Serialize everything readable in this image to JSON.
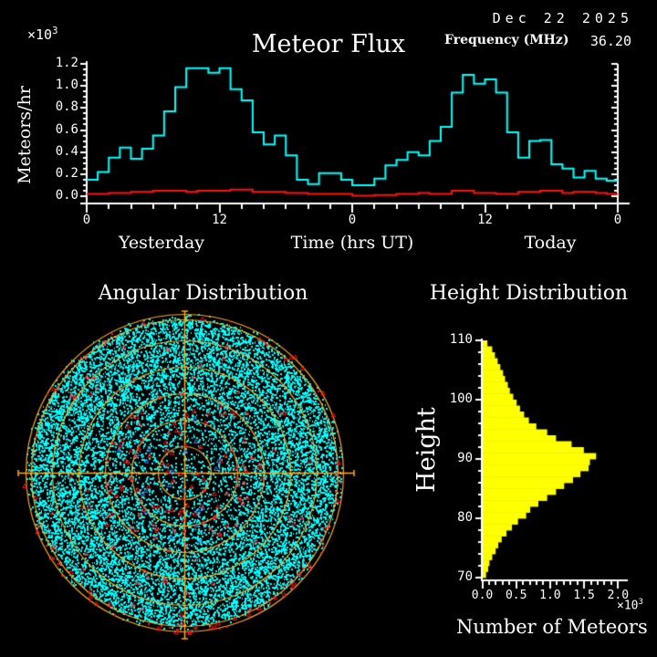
{
  "header": {
    "date": "Dec 22 2025",
    "frequency_label": "Frequency (MHz)",
    "frequency_value": "36.20"
  },
  "colors": {
    "background": "#000000",
    "axis": "#FFFFFF",
    "flux_line": "#00FFFF",
    "background_flux_line": "#FF0000",
    "polar_grid": "#FFA520",
    "scatter_dots": "#00FFFF",
    "red_markers": "#FF1010",
    "blue_markers": "#4488EE",
    "histogram_bars": "#FFFF00"
  },
  "chart_data": [
    {
      "id": "meteor_flux",
      "type": "line",
      "style": "step",
      "title": "Meteor Flux",
      "y_label": "Meteors/hr",
      "y_scale_mantissa": "×10",
      "y_scale_exponent": "3",
      "x_axis_label": "Time (hrs UT)",
      "day_label_left": "Yesterday",
      "day_label_right": "Today",
      "x_hours_range": [
        0,
        48
      ],
      "ylim": [
        0.0,
        1.2
      ],
      "y_tick_labels": [
        "1.2",
        "1.0",
        "0.8",
        "0.6",
        "0.4",
        "0.2",
        "0.0"
      ],
      "x_ticks": [
        {
          "label": "0",
          "hour": 0
        },
        {
          "label": "12",
          "hour": 12
        },
        {
          "label": "0",
          "hour": 24
        },
        {
          "label": "12",
          "hour": 36
        },
        {
          "label": "0",
          "hour": 48
        }
      ],
      "series": [
        {
          "name": "meteor-flux",
          "color": "#00FFFF",
          "hourly_values_x1000": [
            0.15,
            0.22,
            0.35,
            0.44,
            0.34,
            0.43,
            0.55,
            0.77,
            0.99,
            1.16,
            1.16,
            1.12,
            1.16,
            0.97,
            0.87,
            0.58,
            0.47,
            0.55,
            0.37,
            0.15,
            0.11,
            0.21,
            0.21,
            0.15,
            0.1,
            0.1,
            0.16,
            0.28,
            0.33,
            0.4,
            0.37,
            0.5,
            0.63,
            0.94,
            1.1,
            1.02,
            1.06,
            0.94,
            0.58,
            0.35,
            0.5,
            0.51,
            0.29,
            0.25,
            0.17,
            0.23,
            0.16,
            0.14
          ]
        },
        {
          "name": "background-level",
          "color": "#FF1010",
          "hourly_values_x1000": [
            0.02,
            0.02,
            0.03,
            0.03,
            0.04,
            0.04,
            0.05,
            0.05,
            0.05,
            0.04,
            0.05,
            0.05,
            0.05,
            0.06,
            0.06,
            0.04,
            0.04,
            0.04,
            0.03,
            0.03,
            0.02,
            0.02,
            0.02,
            0.02,
            0.005,
            0.005,
            0.01,
            0.01,
            0.02,
            0.02,
            0.03,
            0.02,
            0.02,
            0.05,
            0.05,
            0.03,
            0.03,
            0.02,
            0.02,
            0.04,
            0.04,
            0.05,
            0.05,
            0.03,
            0.04,
            0.04,
            0.03,
            0.02
          ]
        }
      ]
    },
    {
      "id": "angular_distribution",
      "type": "scatter",
      "title": "Angular Distribution",
      "projection": "polar-sky-map",
      "grid_rings_fraction_of_radius": [
        0.1667,
        0.3333,
        0.5,
        0.6667,
        0.8333,
        0.9655,
        1.0
      ],
      "crosshair": true,
      "dot_radial_density_bands": [
        {
          "r0": 0.0,
          "r1": 0.1,
          "count": 60
        },
        {
          "r0": 0.1,
          "r1": 0.2,
          "count": 180
        },
        {
          "r0": 0.2,
          "r1": 0.3,
          "count": 400
        },
        {
          "r0": 0.3,
          "r1": 0.4,
          "count": 700
        },
        {
          "r0": 0.4,
          "r1": 0.5,
          "count": 1100
        },
        {
          "r0": 0.5,
          "r1": 0.6,
          "count": 1600
        },
        {
          "r0": 0.6,
          "r1": 0.7,
          "count": 2100
        },
        {
          "r0": 0.7,
          "r1": 0.8,
          "count": 2600
        },
        {
          "r0": 0.8,
          "r1": 0.9,
          "count": 2900
        },
        {
          "r0": 0.9,
          "r1": 0.97,
          "count": 2300
        },
        {
          "r0": 0.97,
          "r1": 1.0,
          "count": 150
        }
      ],
      "markers": {
        "red_center_count": 110,
        "red_mid_count": 45,
        "red_rim_count": 90,
        "blue_center_count": 20
      }
    },
    {
      "id": "height_distribution",
      "type": "bar",
      "orientation": "horizontal",
      "title": "Height Distribution",
      "y_label": "Height",
      "x_label": "Number of Meteors",
      "x_scale_mantissa": "×10",
      "x_scale_exponent": "3",
      "height_top_km": 110,
      "height_bottom_km": 70,
      "xlim": [
        0.0,
        2.0
      ],
      "y_tick_labels": [
        "110",
        "100",
        "90",
        "80",
        "70"
      ],
      "x_tick_labels": [
        "0.0",
        "0.5",
        "1.0",
        "1.5",
        "2.0"
      ],
      "values_x1000_top_to_bottom": [
        0.07,
        0.14,
        0.18,
        0.22,
        0.26,
        0.3,
        0.33,
        0.37,
        0.4,
        0.45,
        0.5,
        0.55,
        0.61,
        0.68,
        0.79,
        0.95,
        1.08,
        1.31,
        1.49,
        1.67,
        1.58,
        1.56,
        1.44,
        1.33,
        1.2,
        1.08,
        0.95,
        0.82,
        0.7,
        0.64,
        0.52,
        0.43,
        0.35,
        0.28,
        0.23,
        0.19,
        0.14,
        0.1,
        0.08,
        0.05
      ]
    }
  ]
}
